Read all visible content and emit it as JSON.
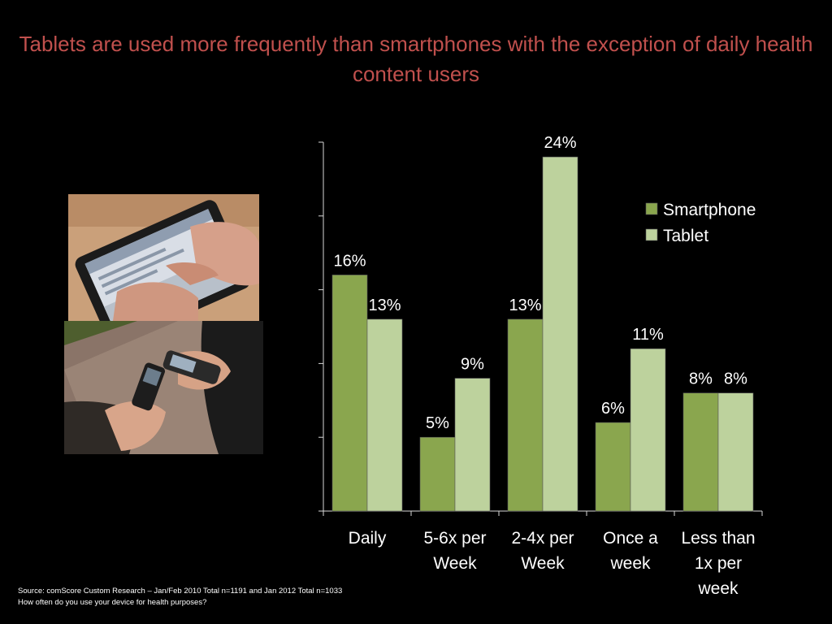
{
  "slide": {
    "title": "Tablets are used more frequently than smartphones with the exception of daily health content users",
    "source_line1": "Source: comScore Custom Research – Jan/Feb 2010 Total n=1191 and Jan 2012 Total n=1033",
    "source_line2": "How often do you use your device for health purposes?"
  },
  "images": [
    {
      "name": "tablet-typing-photo"
    },
    {
      "name": "smartphones-photo"
    }
  ],
  "chart_data": {
    "type": "bar",
    "categories": [
      [
        "Daily"
      ],
      [
        "5-6x per",
        "Week"
      ],
      [
        "2-4x per",
        "Week"
      ],
      [
        "Once a",
        "week"
      ],
      [
        "Less than",
        "1x per",
        "week"
      ]
    ],
    "series": [
      {
        "name": "Smartphone",
        "color": "#8aa64e",
        "values": [
          16,
          5,
          13,
          6,
          8
        ],
        "labels": [
          "16%",
          "5%",
          "13%",
          "6%",
          "8%"
        ]
      },
      {
        "name": "Tablet",
        "color": "#bdd29d",
        "values": [
          13,
          9,
          24,
          11,
          8
        ],
        "labels": [
          "13%",
          "9%",
          "24%",
          "11%",
          "8%"
        ]
      }
    ],
    "ylim": [
      0,
      25
    ],
    "yticks": [
      0,
      5,
      10,
      15,
      20,
      25
    ],
    "ytick_labels_shown": false,
    "grid": false,
    "legend": "top-right"
  }
}
